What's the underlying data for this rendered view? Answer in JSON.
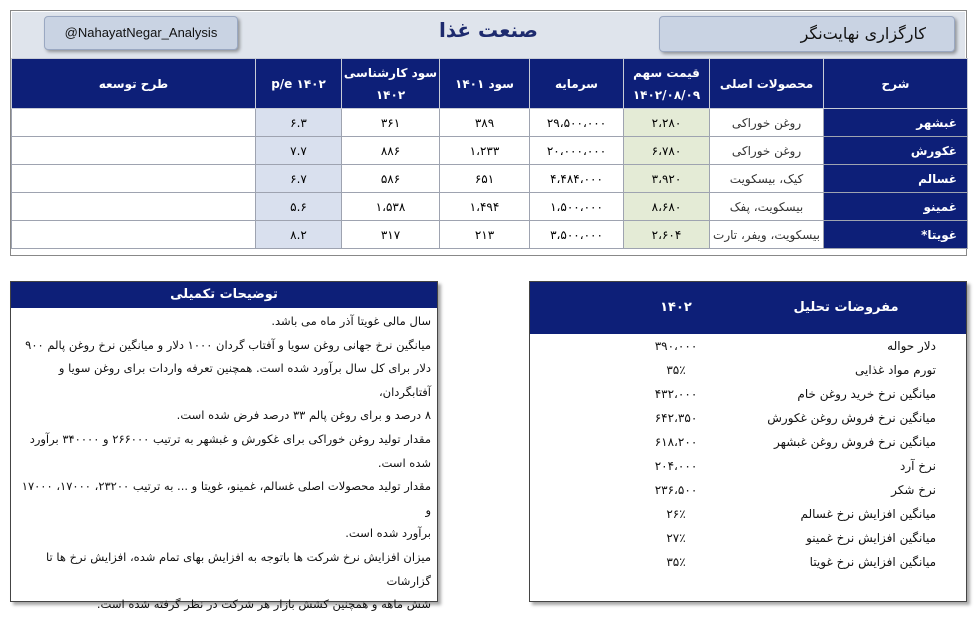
{
  "header": {
    "handle": "@NahayatNegar_Analysis",
    "title": "صنعت غذا",
    "agency": "کارگزاری نهایت‌نگر"
  },
  "table": {
    "headers": [
      "شرح",
      "محصولات اصلی",
      "قیمت سهم ۱۴۰۲/۰۸/۰۹",
      "سرمایه",
      "سود ۱۴۰۱",
      "سود کارشناسی ۱۴۰۲",
      "p/e ۱۴۰۲",
      "طرح توسعه"
    ],
    "rows": [
      {
        "name": "غبشهر",
        "product": "روغن خوراکی",
        "price": "۲،۲۸۰",
        "capital": "۲۹،۵۰۰،۰۰۰",
        "profit1401": "۳۸۹",
        "profit1402": "۳۶۱",
        "pe": "۶.۳",
        "plan": ""
      },
      {
        "name": "غکورش",
        "product": "روغن خوراکی",
        "price": "۶،۷۸۰",
        "capital": "۲۰،۰۰۰،۰۰۰",
        "profit1401": "۱،۲۳۳",
        "profit1402": "۸۸۶",
        "pe": "۷.۷",
        "plan": ""
      },
      {
        "name": "غسالم",
        "product": "کیک، بیسکویت",
        "price": "۳،۹۲۰",
        "capital": "۴،۴۸۴،۰۰۰",
        "profit1401": "۶۵۱",
        "profit1402": "۵۸۶",
        "pe": "۶.۷",
        "plan": ""
      },
      {
        "name": "غمینو",
        "product": "بیسکویت، پفک",
        "price": "۸،۶۸۰",
        "capital": "۱،۵۰۰،۰۰۰",
        "profit1401": "۱،۴۹۴",
        "profit1402": "۱،۵۳۸",
        "pe": "۵.۶",
        "plan": ""
      },
      {
        "name": "غویتا*",
        "product": "بیسکویت، ویفر، تارت",
        "price": "۲،۶۰۴",
        "capital": "۳،۵۰۰،۰۰۰",
        "profit1401": "۲۱۳",
        "profit1402": "۳۱۷",
        "pe": "۸.۲",
        "plan": ""
      }
    ]
  },
  "notes": {
    "title": "توضیحات تکمیلی",
    "lines": [
      "سال مالی غویتا آذر ماه می باشد.",
      "میانگین نرخ جهانی روغن سویا و آفتاب گردان ۱۰۰۰ دلار و میانگین نرخ روغن پالم ۹۰۰",
      "دلار برای کل سال برآورد شده است. همچنین تعرفه واردات برای روغن سویا و آفتابگردان،",
      "۸ درصد و برای روغن پالم ۳۳ درصد فرض شده است.",
      "مقدار تولید روغن خوراکی برای غکورش و غبشهر به ترتیب ۲۶۶۰۰۰ و ۳۴۰۰۰۰ برآورد",
      "شده است.",
      "مقدار تولید محصولات اصلی غسالم، غمینو، غویتا و ... به ترتیب ۲۳۲۰۰، ۱۷۰۰۰، ۱۷۰۰۰ و",
      "برآورد شده است.",
      "میزان افزایش نرخ شرکت ها باتوجه به افزایش بهای تمام شده، افزایش نرخ ها تا گزارشات",
      "شش ماهه و همچنین کشش بازار هر شرکت در نظر گرفته شده است."
    ]
  },
  "assumptions": {
    "title": "مفروضات تحلیل",
    "year": "۱۴۰۲",
    "items": [
      {
        "label": "دلار حواله",
        "value": "۳۹۰،۰۰۰"
      },
      {
        "label": "تورم مواد غذایی",
        "value": "۳۵٪"
      },
      {
        "label": "میانگین نرخ خرید روغن خام",
        "value": "۴۳۲،۰۰۰"
      },
      {
        "label": "میانگین نرخ فروش روغن غکورش",
        "value": "۶۴۲،۳۵۰"
      },
      {
        "label": "میانگین نرخ فروش روغن غبشهر",
        "value": "۶۱۸،۲۰۰"
      },
      {
        "label": "نرخ آرد",
        "value": "۲۰۴،۰۰۰"
      },
      {
        "label": "نرخ شکر",
        "value": "۲۳۶،۵۰۰"
      },
      {
        "label": "میانگین افزایش نرخ غسالم",
        "value": "۲۶٪"
      },
      {
        "label": "میانگین افزایش نرخ غمینو",
        "value": "۲۷٪"
      },
      {
        "label": "میانگین افزایش نرخ غویتا",
        "value": "۳۵٪"
      }
    ]
  }
}
